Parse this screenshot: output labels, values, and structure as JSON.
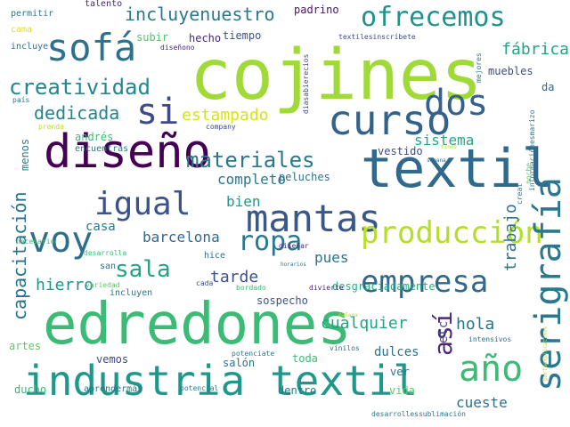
{
  "words": [
    {
      "text": "cojines",
      "color": "#a0da39",
      "vertical": false
    },
    {
      "text": "edredones",
      "color": "#3bbb75",
      "vertical": false
    },
    {
      "text": "industria textil",
      "color": "#1f978b",
      "vertical": false
    },
    {
      "text": "textil",
      "color": "#31688e",
      "vertical": false
    },
    {
      "text": "curso",
      "color": "#33638d",
      "vertical": false
    },
    {
      "text": "diseño",
      "color": "#440154",
      "vertical": false
    },
    {
      "text": "mantas",
      "color": "#38588c",
      "vertical": false
    },
    {
      "text": "sofá",
      "color": "#2c718e",
      "vertical": false
    },
    {
      "text": "si",
      "color": "#3e4a89",
      "vertical": false
    },
    {
      "text": "dos",
      "color": "#34618d",
      "vertical": false
    },
    {
      "text": "ofrecemos",
      "color": "#21918c",
      "vertical": false
    },
    {
      "text": "voy",
      "color": "#2e6f8e",
      "vertical": false
    },
    {
      "text": "producción",
      "color": "#b5de2b",
      "vertical": false
    },
    {
      "text": "empresa",
      "color": "#31688e",
      "vertical": false
    },
    {
      "text": "ropa",
      "color": "#2a788e",
      "vertical": false
    },
    {
      "text": "sala",
      "color": "#20a486",
      "vertical": false
    },
    {
      "text": "año",
      "color": "#3bbb75",
      "vertical": false
    },
    {
      "text": "igual",
      "color": "#3b528b",
      "vertical": false
    },
    {
      "text": "materiales",
      "color": "#2a788e",
      "vertical": false
    },
    {
      "text": "creatividad",
      "color": "#23888e",
      "vertical": false
    },
    {
      "text": "dedicada",
      "color": "#26828e",
      "vertical": false
    },
    {
      "text": "incluyenuestro",
      "color": "#2a788e",
      "vertical": false
    },
    {
      "text": "serigrafía",
      "color": "#2a788e",
      "vertical": true
    },
    {
      "text": "así",
      "color": "#482979",
      "vertical": true
    },
    {
      "text": "capacitación",
      "color": "#2c728e",
      "vertical": true
    },
    {
      "text": "trabajo",
      "color": "#2c728e",
      "vertical": true
    },
    {
      "text": "fábrica",
      "color": "#20a486",
      "vertical": false
    },
    {
      "text": "sistema",
      "color": "#22a884",
      "vertical": false
    },
    {
      "text": "estampado",
      "color": "#d8e219",
      "vertical": false
    },
    {
      "text": "completo",
      "color": "#2a788e",
      "vertical": false
    },
    {
      "text": "bien",
      "color": "#1f988b",
      "vertical": false
    },
    {
      "text": "casa",
      "color": "#2a788e",
      "vertical": false
    },
    {
      "text": "barcelona",
      "color": "#31688e",
      "vertical": false
    },
    {
      "text": "pues",
      "color": "#2c728e",
      "vertical": false
    },
    {
      "text": "tarde",
      "color": "#3b528b",
      "vertical": false
    },
    {
      "text": "hierro",
      "color": "#21918c",
      "vertical": false
    },
    {
      "text": "cualquier",
      "color": "#20a486",
      "vertical": false
    },
    {
      "text": "hola",
      "color": "#2c728e",
      "vertical": false
    },
    {
      "text": "cueste",
      "color": "#2c728e",
      "vertical": false
    },
    {
      "text": "desgraciadamente",
      "color": "#27ad81",
      "vertical": false
    },
    {
      "text": "sospecho",
      "color": "#3b528b",
      "vertical": false
    },
    {
      "text": "peluches",
      "color": "#2c728e",
      "vertical": false
    },
    {
      "text": "vestido",
      "color": "#3e4a89",
      "vertical": false
    },
    {
      "text": "muebles",
      "color": "#3e4a89",
      "vertical": false
    },
    {
      "text": "padrino",
      "color": "#471365",
      "vertical": false
    },
    {
      "text": "hecho",
      "color": "#482979",
      "vertical": false
    },
    {
      "text": "tiempo",
      "color": "#3b528b",
      "vertical": false
    },
    {
      "text": "subir",
      "color": "#52c569",
      "vertical": false
    },
    {
      "text": "permitir",
      "color": "#2a788e",
      "vertical": false
    },
    {
      "text": "talento",
      "color": "#482475",
      "vertical": false
    },
    {
      "text": "cama",
      "color": "#d8e219",
      "vertical": false
    },
    {
      "text": "incluye",
      "color": "#2c728e",
      "vertical": false
    },
    {
      "text": "diseñono",
      "color": "#482475",
      "vertical": false
    },
    {
      "text": "textilesinscríbete",
      "color": "#3e4a89",
      "vertical": false
    },
    {
      "text": "da",
      "color": "#31688e",
      "vertical": false
    },
    {
      "text": "país",
      "color": "#2a788e",
      "vertical": false
    },
    {
      "text": "prenda",
      "color": "#b5de2b",
      "vertical": false
    },
    {
      "text": "andrés",
      "color": "#3bbb75",
      "vertical": false
    },
    {
      "text": "encuentras",
      "color": "#2a788e",
      "vertical": false
    },
    {
      "text": "company",
      "color": "#3e4a89",
      "vertical": false
    },
    {
      "text": "fines",
      "color": "#b5de2b",
      "vertical": false
    },
    {
      "text": "semana",
      "color": "#2c728e",
      "vertical": false
    },
    {
      "text": "necesario",
      "color": "#3bbb75",
      "vertical": false
    },
    {
      "text": "menos",
      "color": "#2a788e",
      "vertical": true
    },
    {
      "text": "san",
      "color": "#2c728e",
      "vertical": false
    },
    {
      "text": "variedad",
      "color": "#5ec962",
      "vertical": false
    },
    {
      "text": "desarrolla",
      "color": "#3bbb75",
      "vertical": false
    },
    {
      "text": "hice",
      "color": "#2c728e",
      "vertical": false
    },
    {
      "text": "diseñar",
      "color": "#482979",
      "vertical": false
    },
    {
      "text": "horarios",
      "color": "#2a788e",
      "vertical": false
    },
    {
      "text": "incluyen",
      "color": "#2c728e",
      "vertical": false
    },
    {
      "text": "cada",
      "color": "#3e4a89",
      "vertical": false
    },
    {
      "text": "bordado",
      "color": "#3bbb75",
      "vertical": false
    },
    {
      "text": "divierte",
      "color": "#482475",
      "vertical": false
    },
    {
      "text": "artes",
      "color": "#5ec962",
      "vertical": false
    },
    {
      "text": "vemos",
      "color": "#3e4a89",
      "vertical": false
    },
    {
      "text": "salón",
      "color": "#2c728e",
      "vertical": false
    },
    {
      "text": "toda",
      "color": "#3bbb75",
      "vertical": false
    },
    {
      "text": "dulces",
      "color": "#2c728e",
      "vertical": false
    },
    {
      "text": "vinilos",
      "color": "#2c728e",
      "vertical": false
    },
    {
      "text": "mañana",
      "color": "#b5de2b",
      "vertical": false
    },
    {
      "text": "potenciate",
      "color": "#2a788e",
      "vertical": false
    },
    {
      "text": "intensivos",
      "color": "#2c728e",
      "vertical": false
    },
    {
      "text": "ver",
      "color": "#2c728e",
      "vertical": false
    },
    {
      "text": "vida",
      "color": "#5ec962",
      "vertical": false
    },
    {
      "text": "etc",
      "color": "#3e4a89",
      "vertical": true
    },
    {
      "text": "ducho",
      "color": "#3bbb75",
      "vertical": false
    },
    {
      "text": "aprendermás",
      "color": "#2c728e",
      "vertical": false
    },
    {
      "text": "potencial",
      "color": "#2a788e",
      "vertical": false
    },
    {
      "text": "dentro",
      "color": "#2a788e",
      "vertical": false
    },
    {
      "text": "desarrollessublimación",
      "color": "#2a788e",
      "vertical": false
    },
    {
      "text": "mejores",
      "color": "#2a788e",
      "vertical": true
    },
    {
      "text": "creat",
      "color": "#2a788e",
      "vertical": true
    },
    {
      "text": "informaciónesmarizo",
      "color": "#2a788e",
      "vertical": true
    },
    {
      "text": "diasabierecios",
      "color": "#3e4a89",
      "vertical": true
    },
    {
      "text": "noche",
      "color": "#5ec962",
      "vertical": true
    },
    {
      "text": "portaexplicativos",
      "color": "#b5de2b",
      "vertical": true
    }
  ]
}
